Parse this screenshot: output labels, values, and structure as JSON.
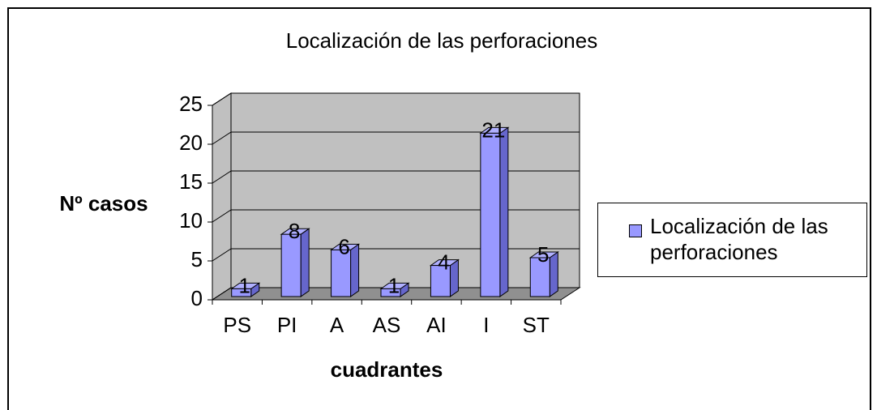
{
  "chart_data": {
    "type": "bar",
    "title": "Localización de las perforaciones",
    "x_label": "cuadrantes",
    "y_label": "Nº casos",
    "categories": [
      "PS",
      "PI",
      "A",
      "AS",
      "AI",
      "I",
      "ST"
    ],
    "series": [
      {
        "name": "Localización de las perforaciones",
        "color": "#9999ff",
        "values": [
          1,
          8,
          6,
          1,
          4,
          21,
          5
        ]
      }
    ],
    "ylim": [
      0,
      25
    ],
    "yticks": [
      0,
      5,
      10,
      15,
      20,
      25
    ],
    "grid": true,
    "legend": "right",
    "data_labels": true
  }
}
